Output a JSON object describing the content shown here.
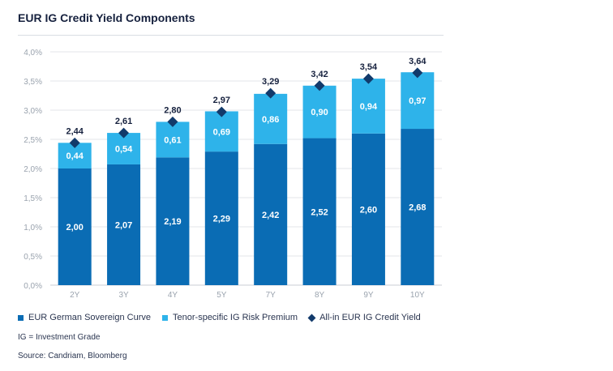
{
  "chart_data": {
    "type": "bar",
    "title": "EUR IG Credit Yield Components",
    "categories": [
      "2Y",
      "3Y",
      "4Y",
      "5Y",
      "7Y",
      "8Y",
      "9Y",
      "10Y"
    ],
    "series": [
      {
        "name": "EUR German Sovereign Curve",
        "type": "bar",
        "stack": "total",
        "color": "#0a6cb4",
        "values": [
          2.0,
          2.07,
          2.19,
          2.29,
          2.42,
          2.52,
          2.6,
          2.68
        ],
        "labels": [
          "2,00",
          "2,07",
          "2,19",
          "2,29",
          "2,42",
          "2,52",
          "2,60",
          "2,68"
        ]
      },
      {
        "name": "Tenor-specific IG Risk Premium",
        "type": "bar",
        "stack": "total",
        "color": "#2eb3ea",
        "values": [
          0.44,
          0.54,
          0.61,
          0.69,
          0.86,
          0.9,
          0.94,
          0.97
        ],
        "labels": [
          "0,44",
          "0,54",
          "0,61",
          "0,69",
          "0,86",
          "0,90",
          "0,94",
          "0,97"
        ]
      },
      {
        "name": "All-in EUR IG Credit Yield",
        "type": "scatter",
        "marker": "diamond",
        "color": "#123a6b",
        "values": [
          2.44,
          2.61,
          2.8,
          2.97,
          3.29,
          3.42,
          3.54,
          3.64
        ],
        "labels": [
          "2,44",
          "2,61",
          "2,80",
          "2,97",
          "3,29",
          "3,42",
          "3,54",
          "3,64"
        ]
      }
    ],
    "ylim": [
      0,
      4.0
    ],
    "yticks": [
      0,
      0.5,
      1.0,
      1.5,
      2.0,
      2.5,
      3.0,
      3.5,
      4.0
    ],
    "ytick_labels": [
      "0,0%",
      "0,5%",
      "1,0%",
      "1,5%",
      "2,0%",
      "2,5%",
      "3,0%",
      "3,5%",
      "4,0%"
    ],
    "grid": true,
    "legend": "bottom"
  },
  "note": "IG = Investment Grade",
  "source": "Source: Candriam, Bloomberg"
}
